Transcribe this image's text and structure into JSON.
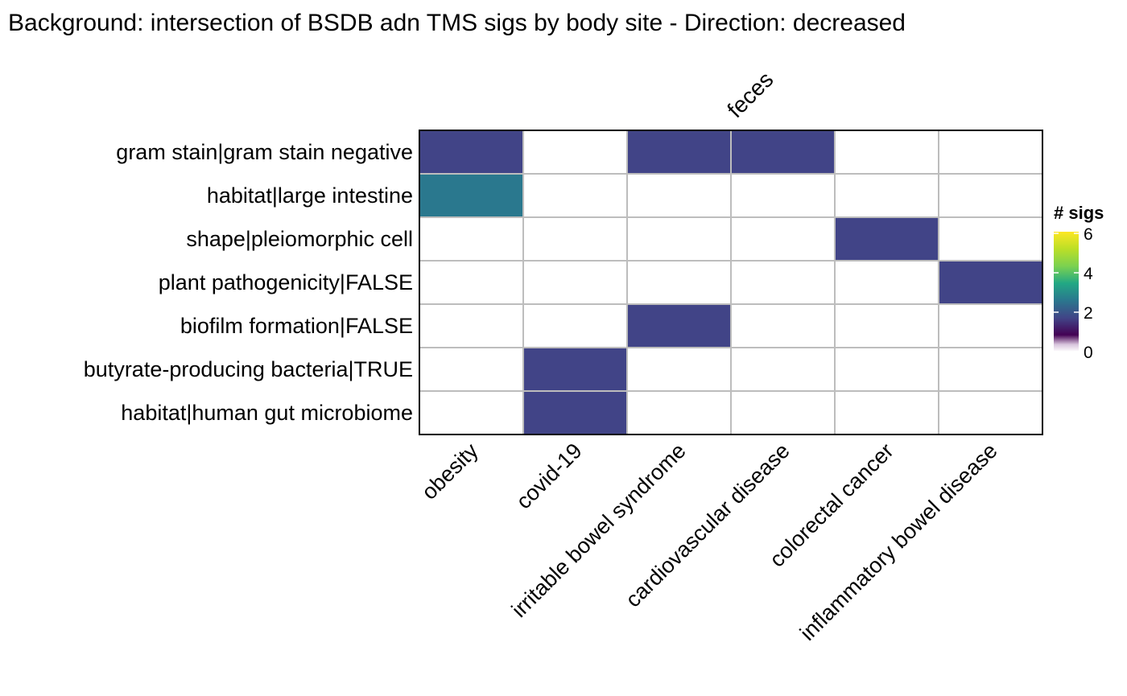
{
  "chart_data": {
    "type": "heatmap",
    "title": "Background: intersection of BSDB adn TMS sigs by body site - Direction: decreased",
    "facet_label": "feces",
    "x_categories": [
      "obesity",
      "covid-19",
      "irritable bowel syndrome",
      "cardiovascular disease",
      "colorectal cancer",
      "inflammatory bowel disease"
    ],
    "y_categories": [
      "gram stain|gram stain negative",
      "habitat|large intestine",
      "shape|pleiomorphic cell",
      "plant pathogenicity|FALSE",
      "biofilm formation|FALSE",
      "butyrate-producing bacteria|TRUE",
      "habitat|human gut microbiome"
    ],
    "values": [
      [
        1,
        0,
        1,
        1,
        0,
        0
      ],
      [
        2,
        0,
        0,
        0,
        0,
        0
      ],
      [
        0,
        0,
        0,
        0,
        1,
        0
      ],
      [
        0,
        0,
        0,
        0,
        0,
        1
      ],
      [
        0,
        0,
        1,
        0,
        0,
        0
      ],
      [
        0,
        1,
        0,
        0,
        0,
        0
      ],
      [
        0,
        1,
        0,
        0,
        0,
        0
      ]
    ],
    "legend": {
      "title": "# sigs",
      "range": [
        0,
        6
      ],
      "ticks": [
        0,
        2,
        4,
        6
      ],
      "colormap": "viridis",
      "zero_color": "#ffffff"
    },
    "grid": true
  }
}
